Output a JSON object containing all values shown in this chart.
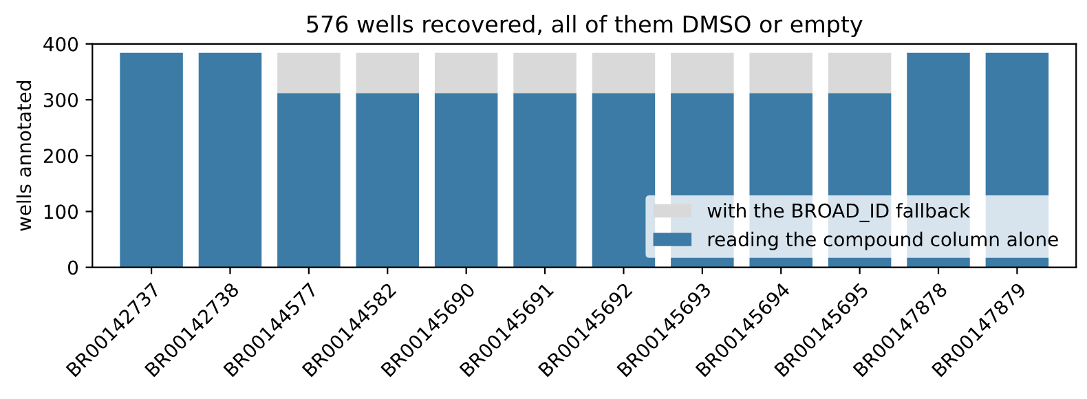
{
  "chart_data": {
    "type": "bar",
    "title": "576 wells recovered, all of them DMSO or empty",
    "ylabel": "wells annotated",
    "categories": [
      "BR00142737",
      "BR00142738",
      "BR00144577",
      "BR00144582",
      "BR00145690",
      "BR00145691",
      "BR00145692",
      "BR00145693",
      "BR00145694",
      "BR00145695",
      "BR00147878",
      "BR00147879"
    ],
    "stacked": true,
    "series": [
      {
        "name": "reading the compound column alone",
        "color": "#3b7ba6",
        "values": [
          384,
          384,
          312,
          312,
          312,
          312,
          312,
          312,
          312,
          312,
          384,
          384
        ]
      },
      {
        "name": "with the BROAD_ID fallback",
        "color": "#d9d9d9",
        "values": [
          0,
          0,
          72,
          72,
          72,
          72,
          72,
          72,
          72,
          72,
          0,
          0
        ]
      }
    ],
    "ylim": [
      0,
      400
    ],
    "yticks": [
      0,
      100,
      200,
      300,
      400
    ],
    "legend": "lower right"
  }
}
